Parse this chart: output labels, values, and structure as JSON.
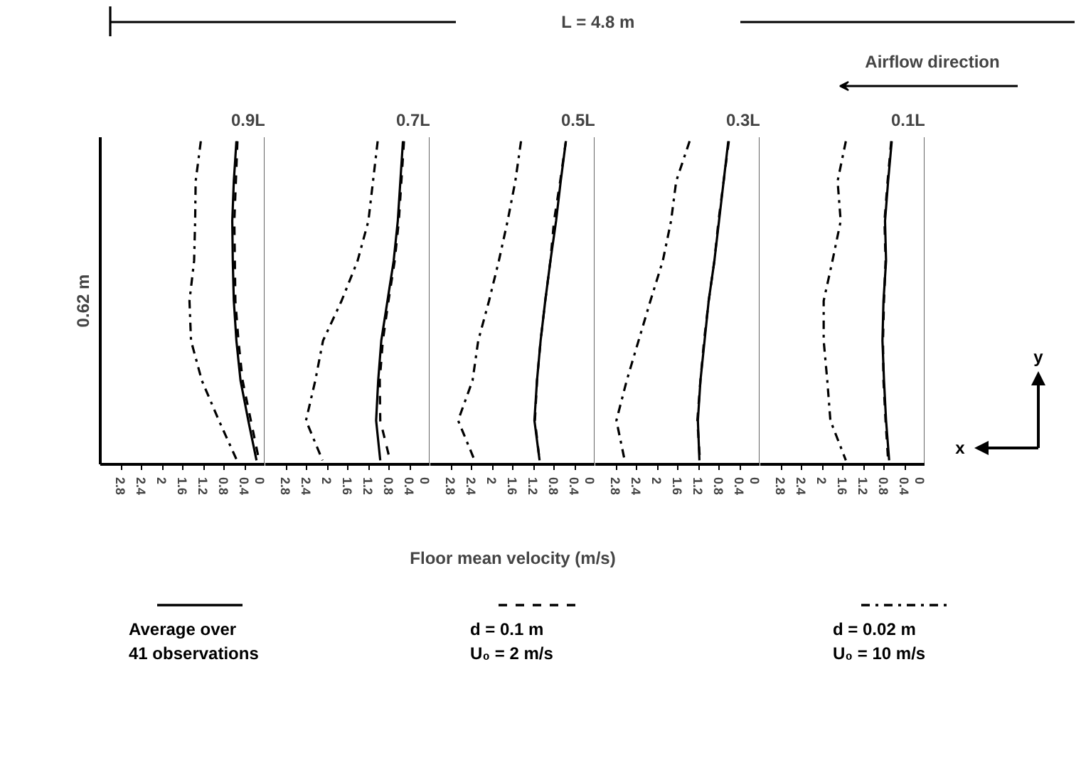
{
  "chart_data": [
    {
      "type": "line",
      "orientation": "horizontal",
      "title": "0.9L",
      "ylabel": "0.62 m",
      "annotations": [
        "L = 4.8 m",
        "Airflow direction",
        "x",
        "y"
      ],
      "legend": "bottom",
      "tick_labels": "x",
      "xlim": [
        3.2,
        0
      ],
      "xticks": [
        2.8,
        2.4,
        2,
        1.6,
        1.2,
        0.8,
        0.4,
        0
      ],
      "categories": [
        null,
        null,
        null,
        null,
        null,
        null,
        null,
        null,
        null
      ],
      "ref_lines": [
        {
          "axis": "x",
          "value": 0
        }
      ],
      "series": [
        {
          "name": "Average over\n41 observations",
          "color": "#000000",
          "line_style": "solid",
          "values": [
            0.56,
            0.61,
            0.64,
            0.63,
            0.61,
            0.56,
            0.48,
            0.33,
            0.17
          ]
        },
        {
          "name": "d = 0.1 m\nU₀ = 2 m/s",
          "color": "#000000",
          "line_style": "dashed",
          "values": [
            0.54,
            0.57,
            0.6,
            0.59,
            0.58,
            0.52,
            0.44,
            0.28,
            0.12
          ]
        },
        {
          "name": "d = 0.02 m\nU₀ = 10 m/s",
          "color": "#000000",
          "line_style": "dashdot",
          "values": [
            1.25,
            1.35,
            1.36,
            1.38,
            1.47,
            1.44,
            1.23,
            0.9,
            0.55
          ]
        }
      ]
    },
    {
      "type": "line",
      "orientation": "horizontal",
      "title": "0.7L",
      "tick_labels": "x",
      "xlim": [
        3.2,
        0
      ],
      "xticks": [
        2.8,
        2.4,
        2,
        1.6,
        1.2,
        0.8,
        0.4,
        0
      ],
      "categories": [
        null,
        null,
        null,
        null,
        null,
        null,
        null,
        null,
        null
      ],
      "ref_lines": [
        {
          "axis": "x",
          "value": 0
        }
      ],
      "series": [
        {
          "color": "#000000",
          "line_style": "solid",
          "values": [
            0.53,
            0.58,
            0.63,
            0.71,
            0.83,
            0.95,
            1.01,
            1.05,
            0.97
          ]
        },
        {
          "color": "#000000",
          "line_style": "dashed",
          "values": [
            0.51,
            0.56,
            0.61,
            0.69,
            0.81,
            0.92,
            0.98,
            0.97,
            0.78
          ]
        },
        {
          "color": "#000000",
          "line_style": "dashdot",
          "values": [
            1.02,
            1.11,
            1.2,
            1.41,
            1.72,
            2.08,
            2.23,
            2.41,
            2.09
          ]
        }
      ]
    },
    {
      "type": "line",
      "orientation": "horizontal",
      "title": "0.5L",
      "xlabel": "Floor mean velocity (m/s)",
      "tick_labels": "x",
      "xlim": [
        3.2,
        0
      ],
      "xticks": [
        2.8,
        2.4,
        2,
        1.6,
        1.2,
        0.8,
        0.4,
        0
      ],
      "categories": [
        null,
        null,
        null,
        null,
        null,
        null,
        null,
        null,
        null
      ],
      "ref_lines": [
        {
          "axis": "x",
          "value": 0
        }
      ],
      "series": [
        {
          "color": "#000000",
          "line_style": "solid",
          "values": [
            0.57,
            0.67,
            0.76,
            0.87,
            0.97,
            1.06,
            1.13,
            1.18,
            1.08
          ]
        },
        {
          "color": "#000000",
          "line_style": "dashed",
          "values": [
            0.57,
            0.68,
            0.8,
            0.87,
            0.97,
            1.06,
            1.13,
            1.17,
            1.08
          ]
        },
        {
          "color": "#000000",
          "line_style": "dashdot",
          "values": [
            1.44,
            1.55,
            1.7,
            1.87,
            2.06,
            2.27,
            2.38,
            2.66,
            2.34
          ]
        }
      ]
    },
    {
      "type": "line",
      "orientation": "horizontal",
      "title": "0.3L",
      "tick_labels": "x",
      "xlim": [
        3.2,
        0
      ],
      "xticks": [
        2.8,
        2.4,
        2,
        1.6,
        1.2,
        0.8,
        0.4,
        0
      ],
      "categories": [
        null,
        null,
        null,
        null,
        null,
        null,
        null,
        null,
        null
      ],
      "ref_lines": [
        {
          "axis": "x",
          "value": 0
        }
      ],
      "series": [
        {
          "color": "#000000",
          "line_style": "solid",
          "values": [
            0.62,
            0.71,
            0.8,
            0.89,
            1.0,
            1.08,
            1.16,
            1.21,
            1.18
          ]
        },
        {
          "color": "#000000",
          "line_style": "dashed",
          "values": [
            0.61,
            0.71,
            0.81,
            0.89,
            1.0,
            1.09,
            1.16,
            1.22,
            1.17
          ]
        },
        {
          "color": "#000000",
          "line_style": "dashdot",
          "values": [
            1.37,
            1.63,
            1.73,
            1.89,
            2.13,
            2.36,
            2.59,
            2.79,
            2.63
          ]
        }
      ]
    },
    {
      "type": "line",
      "orientation": "horizontal",
      "title": "0.1L",
      "tick_labels": "x",
      "xlim": [
        3.2,
        0
      ],
      "xticks": [
        2.8,
        2.4,
        2,
        1.6,
        1.2,
        0.8,
        0.4,
        0
      ],
      "categories": [
        null,
        null,
        null,
        null,
        null,
        null,
        null,
        null,
        null
      ],
      "ref_lines": [
        {
          "axis": "x",
          "value": 0
        }
      ],
      "series": [
        {
          "color": "#000000",
          "line_style": "solid",
          "values": [
            0.65,
            0.72,
            0.78,
            0.76,
            0.81,
            0.83,
            0.8,
            0.76,
            0.7
          ]
        },
        {
          "color": "#000000",
          "line_style": "dashed",
          "values": [
            0.66,
            0.73,
            0.79,
            0.77,
            0.8,
            0.82,
            0.81,
            0.77,
            0.72
          ]
        },
        {
          "color": "#000000",
          "line_style": "dashdot",
          "values": [
            1.54,
            1.7,
            1.64,
            1.8,
            1.97,
            1.97,
            1.9,
            1.84,
            1.54
          ]
        }
      ]
    }
  ]
}
